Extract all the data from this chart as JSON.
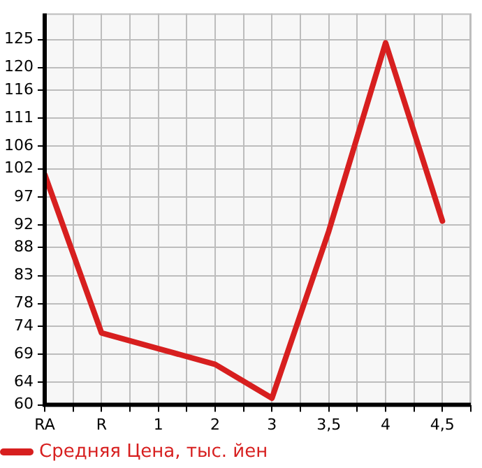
{
  "chart_data": {
    "type": "line",
    "categories": [
      "RA",
      "R",
      "1",
      "2",
      "3",
      "3,5",
      "4",
      "4,5"
    ],
    "series": [
      {
        "name": "Средняя Цена, тыс. йен",
        "color": "#d71f1f",
        "values": [
          101,
          72.8,
          70,
          67.2,
          61.2,
          90.9,
          124.4,
          92.7
        ]
      }
    ],
    "ylim": [
      60,
      129.64
    ],
    "yticks": [
      60,
      64,
      69,
      74,
      78,
      83,
      88,
      92,
      97,
      102,
      106,
      111,
      116,
      120,
      125
    ],
    "grid": true,
    "legend": "bottom",
    "marker": "none",
    "line_style": "solid"
  }
}
